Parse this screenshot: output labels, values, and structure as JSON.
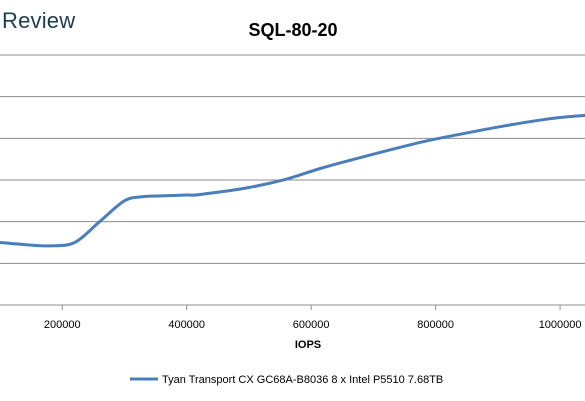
{
  "brand": {
    "name": "Review"
  },
  "chart_data": {
    "type": "line",
    "title": "SQL-80-20",
    "xlabel": "IOPS",
    "ylabel": "",
    "xlim": [
      100000,
      1040000
    ],
    "ylim": [
      0,
      6
    ],
    "x_ticks": [
      200000,
      400000,
      600000,
      800000,
      1000000
    ],
    "x_tick_labels": [
      "200000",
      "400000",
      "600000",
      "800000",
      "1000000"
    ],
    "y_gridlines": [
      1,
      2,
      3,
      4,
      5
    ],
    "grid": true,
    "legend": "bottom",
    "series": [
      {
        "name": "Tyan Transport CX GC68A-B8036 8 x Intel P5510 7.68TB",
        "color": "#4a7ebb",
        "x": [
          100000,
          140000,
          180000,
          220000,
          260000,
          300000,
          330000,
          360000,
          400000,
          420000,
          500000,
          560000,
          620000,
          700000,
          780000,
          840000,
          900000,
          960000,
          1000000,
          1040000
        ],
        "y": [
          1.5,
          1.45,
          1.42,
          1.5,
          2.0,
          2.5,
          2.6,
          2.62,
          2.64,
          2.65,
          2.82,
          3.02,
          3.3,
          3.62,
          3.92,
          4.1,
          4.27,
          4.42,
          4.5,
          4.55
        ]
      }
    ]
  }
}
